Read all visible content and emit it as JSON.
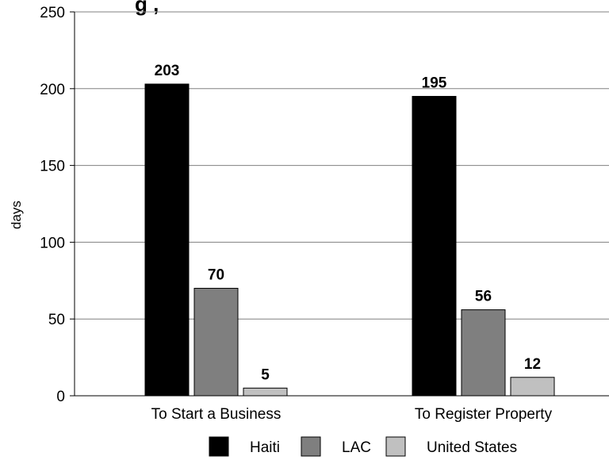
{
  "chart_data": {
    "type": "bar",
    "title": "g                                                    ,",
    "ylabel": "days",
    "xlabel": "",
    "ylim": [
      0,
      250
    ],
    "yticks": [
      0,
      50,
      100,
      150,
      200,
      250
    ],
    "grid": true,
    "legend_position": "bottom",
    "categories": [
      "To Start a Business",
      "To Register Property"
    ],
    "series": [
      {
        "name": "Haiti",
        "values": [
          203,
          195
        ],
        "color": "#000000"
      },
      {
        "name": "LAC",
        "values": [
          70,
          56
        ],
        "color": "#7f7f7f"
      },
      {
        "name": "United States",
        "values": [
          5,
          12
        ],
        "color": "#c0c0c0"
      }
    ]
  }
}
